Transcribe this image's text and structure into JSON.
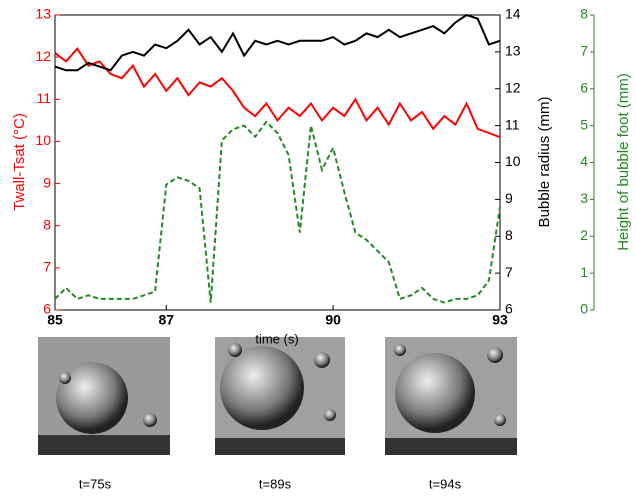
{
  "chart_data": {
    "type": "line",
    "xlabel": "time (s)",
    "ylabel": "Twall-Tsat (°C)",
    "y2label": "Bubble radius (mm)",
    "y3label": "Height of bubble foot (mm)",
    "x": [
      85,
      85.2,
      85.4,
      85.6,
      85.8,
      86,
      86.2,
      86.4,
      86.6,
      86.8,
      87,
      87.2,
      87.4,
      87.6,
      87.8,
      88,
      88.2,
      88.4,
      88.6,
      88.8,
      89,
      89.2,
      89.4,
      89.6,
      89.8,
      90,
      90.2,
      90.4,
      90.6,
      90.8,
      91,
      91.2,
      91.4,
      91.6,
      91.8,
      92,
      92.2,
      92.4,
      92.6,
      92.8,
      93
    ],
    "xlim": [
      85,
      93
    ],
    "xticks": [
      85,
      87,
      90,
      93
    ],
    "ylim": [
      6,
      13
    ],
    "yticks": [
      6,
      7,
      8,
      9,
      10,
      11,
      12,
      13
    ],
    "y2lim": [
      6,
      14
    ],
    "y2ticks": [
      6,
      7,
      8,
      9,
      10,
      11,
      12,
      13,
      14
    ],
    "y3lim": [
      0,
      8
    ],
    "y3ticks": [
      0,
      1,
      2,
      3,
      4,
      5,
      6,
      7,
      8
    ],
    "series": [
      {
        "color": "#ff0000",
        "axis": "y",
        "dash": false,
        "values": [
          12.1,
          11.9,
          12.2,
          11.8,
          11.9,
          11.6,
          11.5,
          11.8,
          11.3,
          11.6,
          11.2,
          11.5,
          11.1,
          11.4,
          11.3,
          11.5,
          11.2,
          10.8,
          10.6,
          10.9,
          10.5,
          10.8,
          10.6,
          10.9,
          10.5,
          10.8,
          10.6,
          11.0,
          10.5,
          10.8,
          10.4,
          10.9,
          10.5,
          10.7,
          10.3,
          10.6,
          10.4,
          10.9,
          10.3,
          10.2,
          10.1
        ]
      },
      {
        "color": "#000000",
        "axis": "y2",
        "dash": false,
        "values": [
          12.6,
          12.5,
          12.5,
          12.7,
          12.6,
          12.5,
          12.9,
          13.0,
          12.9,
          13.2,
          13.1,
          13.3,
          13.6,
          13.2,
          13.4,
          13.0,
          13.5,
          12.9,
          13.3,
          13.2,
          13.3,
          13.2,
          13.3,
          13.3,
          13.3,
          13.4,
          13.2,
          13.3,
          13.5,
          13.4,
          13.6,
          13.4,
          13.5,
          13.6,
          13.7,
          13.5,
          13.8,
          14.0,
          13.9,
          13.2,
          13.3
        ]
      },
      {
        "color": "#228b22",
        "axis": "y3",
        "dash": true,
        "values": [
          0.3,
          0.6,
          0.3,
          0.4,
          0.3,
          0.3,
          0.3,
          0.3,
          0.4,
          0.5,
          3.4,
          3.6,
          3.5,
          3.3,
          0.2,
          4.6,
          4.9,
          5.0,
          4.7,
          5.1,
          4.8,
          4.2,
          2.1,
          5.0,
          3.8,
          4.4,
          3.2,
          2.1,
          1.9,
          1.6,
          1.3,
          0.3,
          0.4,
          0.6,
          0.3,
          0.2,
          0.3,
          0.3,
          0.4,
          0.8,
          2.8
        ]
      }
    ]
  },
  "images": [
    {
      "caption": "t=75s"
    },
    {
      "caption": "t=89s"
    },
    {
      "caption": "t=94s"
    }
  ]
}
